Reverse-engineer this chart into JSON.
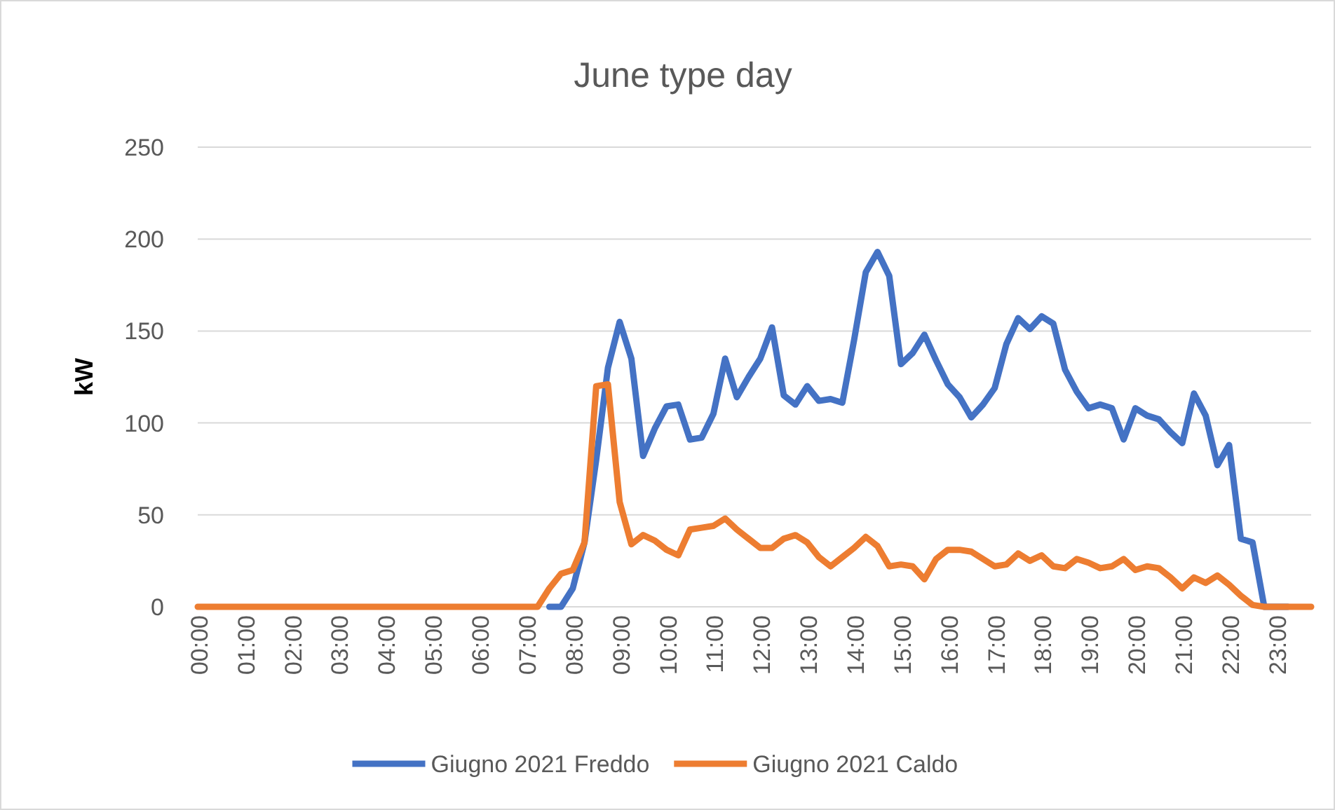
{
  "chart_data": {
    "type": "line",
    "title": "June type day",
    "ylabel": "kW",
    "categories": [
      "00:00",
      null,
      null,
      null,
      "01:00",
      null,
      null,
      null,
      "02:00",
      null,
      null,
      null,
      "03:00",
      null,
      null,
      null,
      "04:00",
      null,
      null,
      null,
      "05:00",
      null,
      null,
      null,
      "06:00",
      null,
      null,
      null,
      "07:00",
      null,
      null,
      null,
      "08:00",
      null,
      null,
      null,
      "09:00",
      null,
      null,
      null,
      "10:00",
      null,
      null,
      null,
      "11:00",
      null,
      null,
      null,
      "12:00",
      null,
      null,
      null,
      "13:00",
      null,
      null,
      null,
      "14:00",
      null,
      null,
      null,
      "15:00",
      null,
      null,
      null,
      "16:00",
      null,
      null,
      null,
      "17:00",
      null,
      null,
      null,
      "18:00",
      null,
      null,
      null,
      "19:00",
      null,
      null,
      null,
      "20:00",
      null,
      null,
      null,
      "21:00",
      null,
      null,
      null,
      "22:00",
      null,
      null,
      null,
      "23:00",
      null,
      null,
      null
    ],
    "series": [
      {
        "name": "Giugno 2021 Freddo",
        "color": "#4472c4",
        "values": [
          null,
          null,
          null,
          null,
          null,
          null,
          null,
          null,
          null,
          null,
          null,
          null,
          null,
          null,
          null,
          null,
          null,
          null,
          null,
          null,
          null,
          null,
          null,
          null,
          null,
          null,
          null,
          null,
          null,
          null,
          0,
          0,
          10,
          35,
          80,
          130,
          155,
          135,
          82,
          97,
          109,
          110,
          91,
          92,
          105,
          135,
          114,
          125,
          135,
          152,
          115,
          110,
          120,
          112,
          113,
          111,
          145,
          182,
          193,
          180,
          132,
          138,
          148,
          134,
          121,
          114,
          103,
          110,
          119,
          143,
          157,
          151,
          158,
          154,
          129,
          117,
          108,
          110,
          108,
          91,
          108,
          104,
          102,
          95,
          89,
          116,
          104,
          77,
          88,
          37,
          35,
          0,
          0,
          0,
          null,
          null
        ]
      },
      {
        "name": "Giugno 2021 Caldo",
        "color": "#ed7d31",
        "values": [
          0,
          0,
          0,
          0,
          0,
          0,
          0,
          0,
          0,
          0,
          0,
          0,
          0,
          0,
          0,
          0,
          0,
          0,
          0,
          0,
          0,
          0,
          0,
          0,
          0,
          0,
          0,
          0,
          0,
          0,
          10,
          18,
          20,
          35,
          120,
          121,
          57,
          34,
          39,
          36,
          31,
          28,
          42,
          43,
          44,
          48,
          42,
          37,
          32,
          32,
          37,
          39,
          35,
          27,
          22,
          27,
          32,
          38,
          33,
          22,
          23,
          22,
          15,
          26,
          31,
          31,
          30,
          26,
          22,
          23,
          29,
          25,
          28,
          22,
          21,
          26,
          24,
          21,
          22,
          26,
          20,
          22,
          21,
          16,
          10,
          16,
          13,
          17,
          12,
          6,
          1,
          0,
          0,
          0,
          0,
          0
        ]
      }
    ],
    "ylim": [
      0,
      250
    ],
    "yticks": [
      0,
      50,
      100,
      150,
      200,
      250
    ],
    "grid": "y",
    "legend": "bottom",
    "marker": "none",
    "line_style": "solid"
  }
}
